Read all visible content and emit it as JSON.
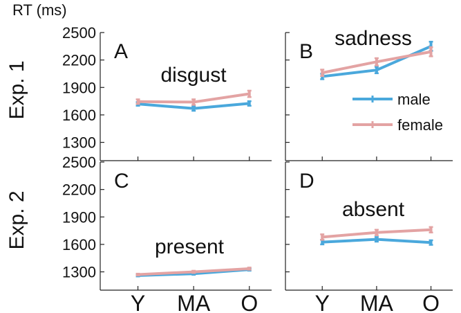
{
  "figure": {
    "y_unit_label": "RT (ms)",
    "row_labels": [
      "Exp. 1",
      "Exp. 2"
    ]
  },
  "colors": {
    "male": "#4aa8dc",
    "female": "#e3a3a3"
  },
  "chart_data": [
    {
      "type": "line",
      "panel": "A",
      "title": "disgust",
      "categories": [
        "Y",
        "MA",
        "O"
      ],
      "ylim": [
        1100,
        2500
      ],
      "yticks": [
        1300,
        1600,
        1900,
        2200,
        2500
      ],
      "ylabel": "RT (ms)",
      "series": [
        {
          "name": "male",
          "values": [
            1720,
            1670,
            1725
          ],
          "errors": [
            20,
            25,
            25
          ]
        },
        {
          "name": "female",
          "values": [
            1745,
            1740,
            1830
          ],
          "errors": [
            25,
            30,
            35
          ]
        }
      ]
    },
    {
      "type": "line",
      "panel": "B",
      "title": "sadness",
      "categories": [
        "Y",
        "MA",
        "O"
      ],
      "ylim": [
        1100,
        2500
      ],
      "yticks": [
        1300,
        1600,
        1900,
        2200,
        2500
      ],
      "legend": [
        "male",
        "female"
      ],
      "series": [
        {
          "name": "male",
          "values": [
            2020,
            2090,
            2350
          ],
          "errors": [
            30,
            35,
            50
          ]
        },
        {
          "name": "female",
          "values": [
            2060,
            2180,
            2290
          ],
          "errors": [
            35,
            40,
            50
          ]
        }
      ]
    },
    {
      "type": "line",
      "panel": "C",
      "title": "present",
      "categories": [
        "Y",
        "MA",
        "O"
      ],
      "ylim": [
        1100,
        2500
      ],
      "yticks": [
        1300,
        1600,
        1900,
        2200,
        2500
      ],
      "series": [
        {
          "name": "male",
          "values": [
            1260,
            1280,
            1325
          ],
          "errors": [
            10,
            12,
            12
          ]
        },
        {
          "name": "female",
          "values": [
            1270,
            1300,
            1335
          ],
          "errors": [
            10,
            12,
            12
          ]
        }
      ]
    },
    {
      "type": "line",
      "panel": "D",
      "title": "absent",
      "categories": [
        "Y",
        "MA",
        "O"
      ],
      "ylim": [
        1100,
        2500
      ],
      "yticks": [
        1300,
        1600,
        1900,
        2200,
        2500
      ],
      "series": [
        {
          "name": "male",
          "values": [
            1625,
            1655,
            1620
          ],
          "errors": [
            25,
            25,
            25
          ]
        },
        {
          "name": "female",
          "values": [
            1680,
            1730,
            1760
          ],
          "errors": [
            30,
            30,
            30
          ]
        }
      ]
    }
  ]
}
